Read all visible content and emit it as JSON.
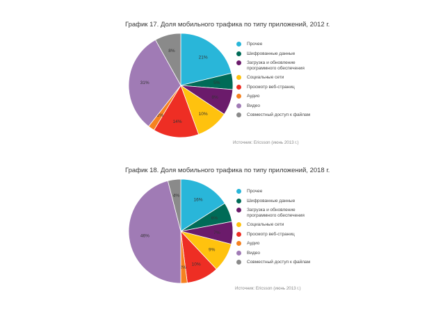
{
  "chart_data": [
    {
      "type": "pie",
      "title": "График 17. Доля мобильного трафика по типу приложений, 2012 г.",
      "source": "Источник: Ericsson (июнь 2013 г.)",
      "slices": [
        {
          "label": "Прочее",
          "value": 21,
          "value_label": "21%",
          "color": "#29b6d9"
        },
        {
          "label": "Шифрованные данные",
          "value": 5,
          "value_label": "5%",
          "color": "#006b57"
        },
        {
          "label": "Загрузка и обновление программного обеспечения",
          "value": 8,
          "value_label": "8%",
          "color": "#6b1b6b"
        },
        {
          "label": "Социальные сети",
          "value": 10,
          "value_label": "10%",
          "color": "#ffc20e"
        },
        {
          "label": "Просмотр веб-страниц",
          "value": 14,
          "value_label": "14%",
          "color": "#ee2e24"
        },
        {
          "label": "Аудио",
          "value": 2,
          "value_label": "2%",
          "color": "#f58220"
        },
        {
          "label": "Видео",
          "value": 31,
          "value_label": "31%",
          "color": "#a07bb5"
        },
        {
          "label": "Совместный доступ к файлам",
          "value": 8,
          "value_label": "8%",
          "color": "#8a8a8a"
        }
      ]
    },
    {
      "type": "pie",
      "title": "График 18. Доля мобильного трафика по типу приложений, 2018 г.",
      "source": "Источник: Ericsson (июнь 2013 г.)",
      "slices": [
        {
          "label": "Прочее",
          "value": 16,
          "value_label": "16%",
          "color": "#29b6d9"
        },
        {
          "label": "Шифрованные данные",
          "value": 6,
          "value_label": "6%",
          "color": "#006b57"
        },
        {
          "label": "Загрузка и обновление программного обеспечения",
          "value": 7,
          "value_label": "7%",
          "color": "#6b1b6b"
        },
        {
          "label": "Социальные сети",
          "value": 9,
          "value_label": "9%",
          "color": "#ffc20e"
        },
        {
          "label": "Просмотр веб-страниц",
          "value": 10,
          "value_label": "10%",
          "color": "#ee2e24"
        },
        {
          "label": "Аудио",
          "value": 2,
          "value_label": "2%",
          "color": "#f58220"
        },
        {
          "label": "Видео",
          "value": 46,
          "value_label": "46%",
          "color": "#a07bb5"
        },
        {
          "label": "Совместный доступ к файлам",
          "value": 4,
          "value_label": "4%",
          "color": "#8a8a8a"
        }
      ]
    }
  ]
}
